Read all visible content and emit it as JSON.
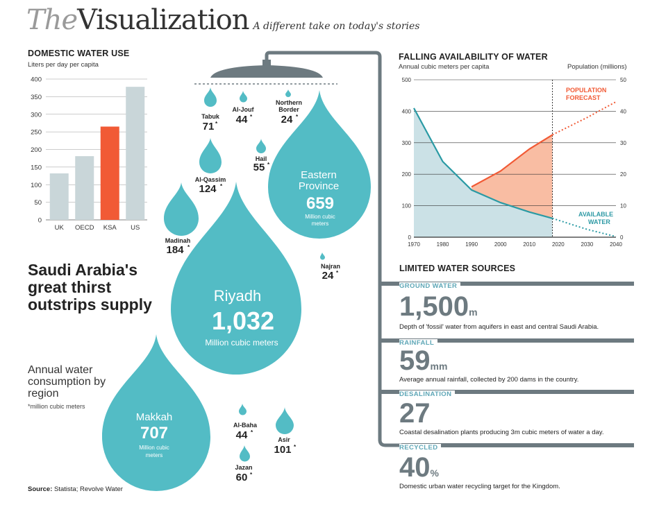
{
  "masthead": {
    "the": "The",
    "visualization": "Visualization",
    "tagline": "A different take on today's stories"
  },
  "colors": {
    "teal": "#53bcc5",
    "orange": "#f15a35",
    "grey_bar": "#c9d6d9",
    "slate": "#6d7a80",
    "pale_teal": "#cbe1e6",
    "salmon": "#f9bda3"
  },
  "domestic": {
    "title": "DOMESTIC WATER USE",
    "subtitle": "Liters per day per capita"
  },
  "availability": {
    "title": "FALLING AVAILABILITY OF WATER",
    "left_unit": "Annual cubic meters per capita",
    "right_unit": "Population (millions)",
    "population_label_1": "POPULATION",
    "population_label_2": "FORECAST",
    "water_label_1": "AVAILABLE",
    "water_label_2": "WATER"
  },
  "headline": "Saudi Arabia's great thirst outstrips supply",
  "annual": {
    "text": "Annual water consumption by region",
    "note": "*million cubic meters"
  },
  "limited": {
    "title": "LIMITED WATER SOURCES",
    "items": [
      {
        "label": "GROUND WATER",
        "value": "1,500",
        "unit": "m",
        "desc": "Depth of 'fossil' water from aquifers in east and central Saudi Arabia."
      },
      {
        "label": "RAINFALL",
        "value": "59",
        "unit": "mm",
        "desc": "Average annual rainfall, collected by 200 dams in the country."
      },
      {
        "label": "DESALINATION",
        "value": "27",
        "unit": "",
        "desc": "Coastal desalination plants producing 3m cubic meters of water a day."
      },
      {
        "label": "RECYCLED",
        "value": "40",
        "unit": "%",
        "desc": "Domestic urban water recycling target for the Kingdom."
      }
    ]
  },
  "source_label": "Source:",
  "source_text": " Statista; Revolve Water",
  "chart_data": [
    {
      "type": "bar",
      "title": "DOMESTIC WATER USE",
      "ylabel": "Liters per day per capita",
      "categories": [
        "UK",
        "OECD",
        "KSA",
        "US"
      ],
      "values": [
        132,
        181,
        265,
        378
      ],
      "highlight": "KSA",
      "ylim": [
        0,
        400
      ],
      "yticks": [
        0,
        50,
        100,
        150,
        200,
        250,
        300,
        350,
        400
      ],
      "grid": true
    },
    {
      "type": "area",
      "title": "FALLING AVAILABILITY OF WATER",
      "x_ticks": [
        1970,
        1980,
        1990,
        2000,
        2010,
        2020,
        2030,
        2040
      ],
      "left_axis": {
        "label": "Annual cubic meters per capita",
        "ylim": [
          0,
          500
        ],
        "ticks": [
          0,
          100,
          200,
          300,
          400,
          500
        ]
      },
      "right_axis": {
        "label": "Population (millions)",
        "ylim": [
          0,
          50
        ],
        "ticks": [
          0,
          10,
          20,
          30,
          40,
          50
        ]
      },
      "forecast_start": 2018,
      "series": [
        {
          "name": "AVAILABLE WATER",
          "axis": "left",
          "x": [
            1970,
            1980,
            1990,
            2000,
            2010,
            2018,
            2030,
            2040
          ],
          "y": [
            410,
            240,
            150,
            110,
            80,
            60,
            25,
            2
          ]
        },
        {
          "name": "POPULATION FORECAST",
          "axis": "right",
          "x": [
            1990,
            2000,
            2010,
            2018,
            2030,
            2040
          ],
          "y": [
            16,
            21,
            28,
            32.5,
            38,
            43
          ]
        }
      ]
    },
    {
      "type": "bubble",
      "title": "Annual water consumption by region",
      "unit": "million cubic meters",
      "items": [
        {
          "name": "Riyadh",
          "value": "1,032",
          "unit_text": "Million cubic meters"
        },
        {
          "name": "Makkah",
          "value": "707",
          "unit_text": "Million cubic meters"
        },
        {
          "name": "Eastern Province",
          "name_line1": "Eastern",
          "name_line2": "Province",
          "value": "659",
          "unit_text": "Million cubic meters"
        },
        {
          "name": "Madinah",
          "value": "184"
        },
        {
          "name": "Al-Qassim",
          "value": "124"
        },
        {
          "name": "Asir",
          "value": "101"
        },
        {
          "name": "Tabuk",
          "value": "71"
        },
        {
          "name": "Jazan",
          "value": "60"
        },
        {
          "name": "Hail",
          "value": "55"
        },
        {
          "name": "Al-Jouf",
          "value": "44"
        },
        {
          "name": "Al-Baha",
          "value": "44"
        },
        {
          "name": "Najran",
          "value": "24"
        },
        {
          "name": "Northern Border",
          "name_line1": "Northern",
          "name_line2": "Border",
          "value": "24"
        }
      ]
    }
  ]
}
